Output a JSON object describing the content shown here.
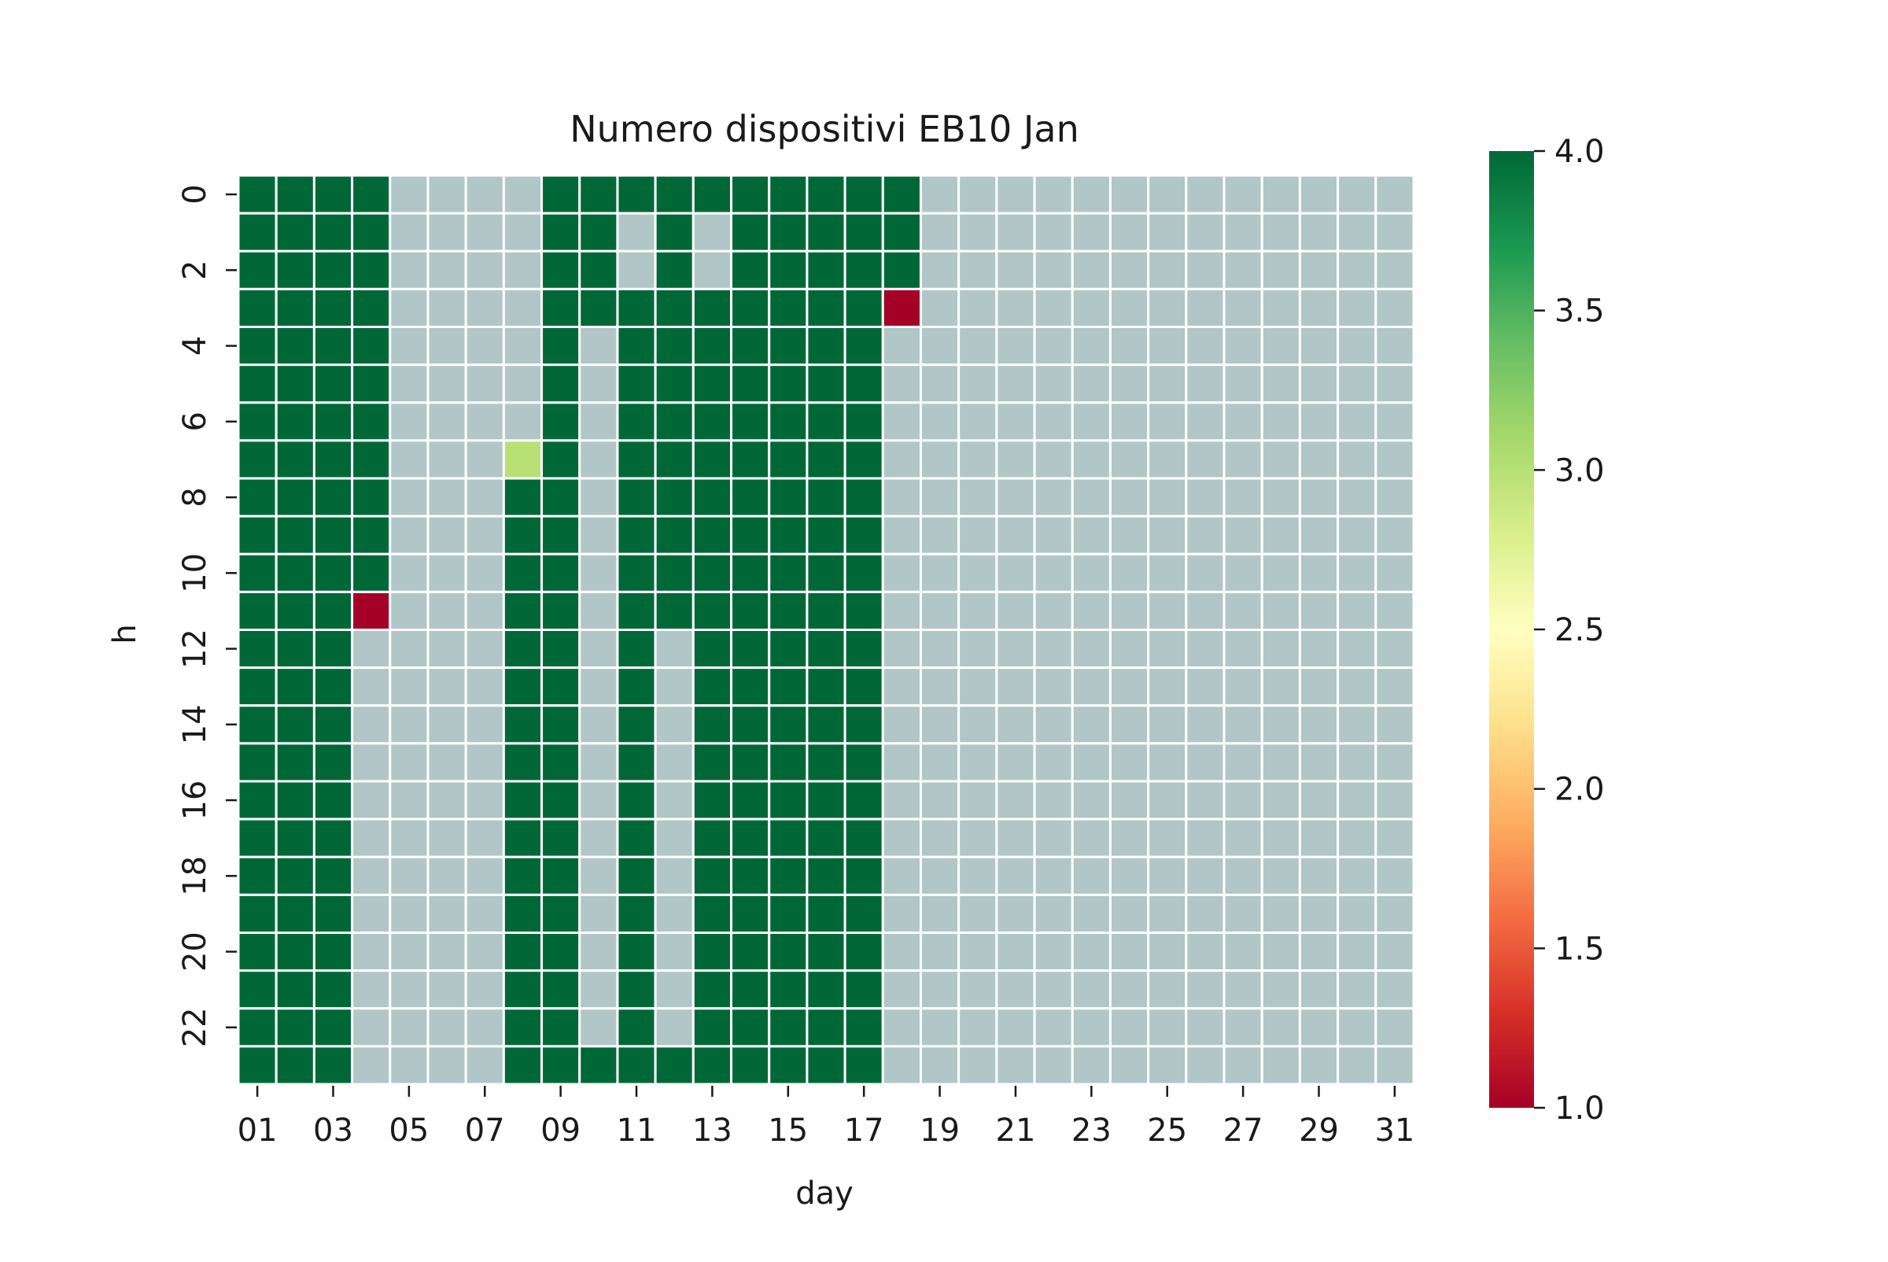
{
  "chart_data": {
    "type": "heatmap",
    "title": "Numero dispositivi EB10 Jan",
    "xlabel": "day",
    "ylabel": "h",
    "x": [
      "01",
      "02",
      "03",
      "04",
      "05",
      "06",
      "07",
      "08",
      "09",
      "10",
      "11",
      "12",
      "13",
      "14",
      "15",
      "16",
      "17",
      "18",
      "19",
      "20",
      "21",
      "22",
      "23",
      "24",
      "25",
      "26",
      "27",
      "28",
      "29",
      "30",
      "31"
    ],
    "y": [
      0,
      1,
      2,
      3,
      4,
      5,
      6,
      7,
      8,
      9,
      10,
      11,
      12,
      13,
      14,
      15,
      16,
      17,
      18,
      19,
      20,
      21,
      22,
      23
    ],
    "x_tick_labels": [
      "01",
      "03",
      "05",
      "07",
      "09",
      "11",
      "13",
      "15",
      "17",
      "19",
      "21",
      "23",
      "25",
      "27",
      "29",
      "31"
    ],
    "y_tick_labels": [
      "0",
      "2",
      "4",
      "6",
      "8",
      "10",
      "12",
      "14",
      "16",
      "18",
      "20",
      "22"
    ],
    "missing_value_color": "#b1c7c7",
    "values": [
      [
        4,
        4,
        4,
        4,
        null,
        null,
        null,
        null,
        4,
        4,
        4,
        4,
        4,
        4,
        4,
        4,
        4,
        4,
        null,
        null,
        null,
        null,
        null,
        null,
        null,
        null,
        null,
        null,
        null,
        null,
        null
      ],
      [
        4,
        4,
        4,
        4,
        null,
        null,
        null,
        null,
        4,
        4,
        null,
        4,
        null,
        4,
        4,
        4,
        4,
        4,
        null,
        null,
        null,
        null,
        null,
        null,
        null,
        null,
        null,
        null,
        null,
        null,
        null
      ],
      [
        4,
        4,
        4,
        4,
        null,
        null,
        null,
        null,
        4,
        4,
        null,
        4,
        null,
        4,
        4,
        4,
        4,
        4,
        null,
        null,
        null,
        null,
        null,
        null,
        null,
        null,
        null,
        null,
        null,
        null,
        null
      ],
      [
        4,
        4,
        4,
        4,
        null,
        null,
        null,
        null,
        4,
        4,
        4,
        4,
        4,
        4,
        4,
        4,
        4,
        1,
        null,
        null,
        null,
        null,
        null,
        null,
        null,
        null,
        null,
        null,
        null,
        null,
        null
      ],
      [
        4,
        4,
        4,
        4,
        null,
        null,
        null,
        null,
        4,
        null,
        4,
        4,
        4,
        4,
        4,
        4,
        4,
        null,
        null,
        null,
        null,
        null,
        null,
        null,
        null,
        null,
        null,
        null,
        null,
        null,
        null
      ],
      [
        4,
        4,
        4,
        4,
        null,
        null,
        null,
        null,
        4,
        null,
        4,
        4,
        4,
        4,
        4,
        4,
        4,
        null,
        null,
        null,
        null,
        null,
        null,
        null,
        null,
        null,
        null,
        null,
        null,
        null,
        null
      ],
      [
        4,
        4,
        4,
        4,
        null,
        null,
        null,
        null,
        4,
        null,
        4,
        4,
        4,
        4,
        4,
        4,
        4,
        null,
        null,
        null,
        null,
        null,
        null,
        null,
        null,
        null,
        null,
        null,
        null,
        null,
        null
      ],
      [
        4,
        4,
        4,
        4,
        null,
        null,
        null,
        3,
        4,
        null,
        4,
        4,
        4,
        4,
        4,
        4,
        4,
        null,
        null,
        null,
        null,
        null,
        null,
        null,
        null,
        null,
        null,
        null,
        null,
        null,
        null
      ],
      [
        4,
        4,
        4,
        4,
        null,
        null,
        null,
        4,
        4,
        null,
        4,
        4,
        4,
        4,
        4,
        4,
        4,
        null,
        null,
        null,
        null,
        null,
        null,
        null,
        null,
        null,
        null,
        null,
        null,
        null,
        null
      ],
      [
        4,
        4,
        4,
        4,
        null,
        null,
        null,
        4,
        4,
        null,
        4,
        4,
        4,
        4,
        4,
        4,
        4,
        null,
        null,
        null,
        null,
        null,
        null,
        null,
        null,
        null,
        null,
        null,
        null,
        null,
        null
      ],
      [
        4,
        4,
        4,
        4,
        null,
        null,
        null,
        4,
        4,
        null,
        4,
        4,
        4,
        4,
        4,
        4,
        4,
        null,
        null,
        null,
        null,
        null,
        null,
        null,
        null,
        null,
        null,
        null,
        null,
        null,
        null
      ],
      [
        4,
        4,
        4,
        1,
        null,
        null,
        null,
        4,
        4,
        null,
        4,
        4,
        4,
        4,
        4,
        4,
        4,
        null,
        null,
        null,
        null,
        null,
        null,
        null,
        null,
        null,
        null,
        null,
        null,
        null,
        null
      ],
      [
        4,
        4,
        4,
        null,
        null,
        null,
        null,
        4,
        4,
        null,
        4,
        null,
        4,
        4,
        4,
        4,
        4,
        null,
        null,
        null,
        null,
        null,
        null,
        null,
        null,
        null,
        null,
        null,
        null,
        null,
        null
      ],
      [
        4,
        4,
        4,
        null,
        null,
        null,
        null,
        4,
        4,
        null,
        4,
        null,
        4,
        4,
        4,
        4,
        4,
        null,
        null,
        null,
        null,
        null,
        null,
        null,
        null,
        null,
        null,
        null,
        null,
        null,
        null
      ],
      [
        4,
        4,
        4,
        null,
        null,
        null,
        null,
        4,
        4,
        null,
        4,
        null,
        4,
        4,
        4,
        4,
        4,
        null,
        null,
        null,
        null,
        null,
        null,
        null,
        null,
        null,
        null,
        null,
        null,
        null,
        null
      ],
      [
        4,
        4,
        4,
        null,
        null,
        null,
        null,
        4,
        4,
        null,
        4,
        null,
        4,
        4,
        4,
        4,
        4,
        null,
        null,
        null,
        null,
        null,
        null,
        null,
        null,
        null,
        null,
        null,
        null,
        null,
        null
      ],
      [
        4,
        4,
        4,
        null,
        null,
        null,
        null,
        4,
        4,
        null,
        4,
        null,
        4,
        4,
        4,
        4,
        4,
        null,
        null,
        null,
        null,
        null,
        null,
        null,
        null,
        null,
        null,
        null,
        null,
        null,
        null
      ],
      [
        4,
        4,
        4,
        null,
        null,
        null,
        null,
        4,
        4,
        null,
        4,
        null,
        4,
        4,
        4,
        4,
        4,
        null,
        null,
        null,
        null,
        null,
        null,
        null,
        null,
        null,
        null,
        null,
        null,
        null,
        null
      ],
      [
        4,
        4,
        4,
        null,
        null,
        null,
        null,
        4,
        4,
        null,
        4,
        null,
        4,
        4,
        4,
        4,
        4,
        null,
        null,
        null,
        null,
        null,
        null,
        null,
        null,
        null,
        null,
        null,
        null,
        null,
        null
      ],
      [
        4,
        4,
        4,
        null,
        null,
        null,
        null,
        4,
        4,
        null,
        4,
        null,
        4,
        4,
        4,
        4,
        4,
        null,
        null,
        null,
        null,
        null,
        null,
        null,
        null,
        null,
        null,
        null,
        null,
        null,
        null
      ],
      [
        4,
        4,
        4,
        null,
        null,
        null,
        null,
        4,
        4,
        null,
        4,
        null,
        4,
        4,
        4,
        4,
        4,
        null,
        null,
        null,
        null,
        null,
        null,
        null,
        null,
        null,
        null,
        null,
        null,
        null,
        null
      ],
      [
        4,
        4,
        4,
        null,
        null,
        null,
        null,
        4,
        4,
        null,
        4,
        null,
        4,
        4,
        4,
        4,
        4,
        null,
        null,
        null,
        null,
        null,
        null,
        null,
        null,
        null,
        null,
        null,
        null,
        null,
        null
      ],
      [
        4,
        4,
        4,
        null,
        null,
        null,
        null,
        4,
        4,
        null,
        4,
        null,
        4,
        4,
        4,
        4,
        4,
        null,
        null,
        null,
        null,
        null,
        null,
        null,
        null,
        null,
        null,
        null,
        null,
        null,
        null
      ],
      [
        4,
        4,
        4,
        null,
        null,
        null,
        null,
        4,
        4,
        4,
        4,
        4,
        4,
        4,
        4,
        4,
        4,
        null,
        null,
        null,
        null,
        null,
        null,
        null,
        null,
        null,
        null,
        null,
        null,
        null,
        null
      ]
    ],
    "colorbar": {
      "colormap": "RdYlGn",
      "range": [
        1.0,
        4.0
      ],
      "tick_labels": [
        "1.0",
        "1.5",
        "2.0",
        "2.5",
        "3.0",
        "3.5",
        "4.0"
      ],
      "tick_values": [
        1.0,
        1.5,
        2.0,
        2.5,
        3.0,
        3.5,
        4.0
      ]
    },
    "grid": false
  }
}
